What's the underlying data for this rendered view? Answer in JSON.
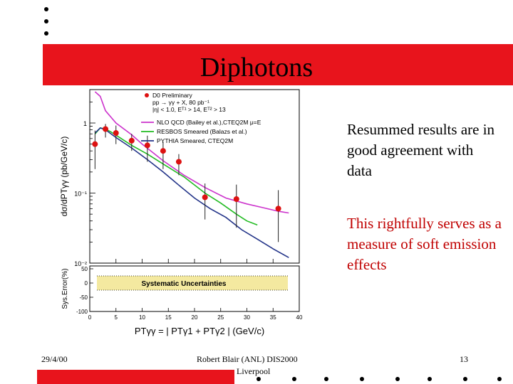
{
  "slide": {
    "title": "Diphotons",
    "bullets": [
      {
        "text": "Resummed results are in good agreement with data",
        "color": "#000000"
      },
      {
        "text": "This rightfully serves as a measure of soft emission effects",
        "color": "#c00000"
      }
    ],
    "footer": {
      "date": "29/4/00",
      "author": "Robert Blair (ANL) DIS2000",
      "location": "Liverpool",
      "page": "13"
    },
    "accent_color": "#e8141c"
  },
  "chart_data": [
    {
      "type": "scatter",
      "ylabel": "dσ/dPTγγ (pb/GeV/c)",
      "y_ticks": [
        "1",
        "10⁻¹",
        "10⁻²"
      ],
      "log_y": true,
      "xlim": [
        0,
        40
      ],
      "ylim": [
        0.01,
        3
      ],
      "legend": {
        "placement": "top-right",
        "header": [
          "D0 Preliminary",
          "pp → γγ + X, 80 pb⁻¹",
          "|η| < 1.0, Eᵀ¹ > 14, Eᵀ² > 13"
        ],
        "entries": [
          {
            "label": "D0 Preliminary",
            "color": "#dd1111",
            "kind": "points"
          },
          {
            "label": "NLO QCD (Bailey et al.),CTEQ2M μ=E",
            "color": "#cc33cc",
            "kind": "line"
          },
          {
            "label": "RESBOS Smeared (Balazs et al.)",
            "color": "#22bb22",
            "kind": "line"
          },
          {
            "label": "PYTHIA Smeared, CTEQ2M",
            "color": "#223388",
            "kind": "line"
          }
        ]
      },
      "series": [
        {
          "name": "D0 Preliminary",
          "kind": "points",
          "color": "#dd1111",
          "x": [
            1,
            3,
            5,
            8,
            11,
            14,
            17,
            22,
            28,
            36
          ],
          "y": [
            0.5,
            0.82,
            0.72,
            0.56,
            0.48,
            0.4,
            0.28,
            0.087,
            0.082,
            0.06
          ],
          "err_lo": [
            0.28,
            0.2,
            0.22,
            0.16,
            0.2,
            0.18,
            0.1,
            0.045,
            0.05,
            0.04
          ],
          "err_hi": [
            0.28,
            0.15,
            0.2,
            0.14,
            0.18,
            0.14,
            0.08,
            0.05,
            0.05,
            0.05
          ]
        },
        {
          "name": "NLO QCD (Bailey et al.),CTEQ2M μ=E",
          "kind": "line",
          "color": "#cc33cc",
          "x": [
            1,
            2,
            3,
            5,
            8,
            10,
            14,
            18,
            22,
            26,
            30,
            33,
            36,
            38
          ],
          "y": [
            2.8,
            2.4,
            1.5,
            1.0,
            0.68,
            0.5,
            0.29,
            0.18,
            0.12,
            0.085,
            0.07,
            0.062,
            0.055,
            0.052
          ]
        },
        {
          "name": "RESBOS Smeared (Balazs et al.)",
          "kind": "line",
          "color": "#22bb22",
          "x": [
            1,
            2,
            3,
            4,
            6,
            8,
            11,
            14,
            18,
            22,
            25,
            28,
            30,
            32
          ],
          "y": [
            0.7,
            0.85,
            0.82,
            0.75,
            0.6,
            0.48,
            0.36,
            0.26,
            0.17,
            0.1,
            0.072,
            0.05,
            0.04,
            0.035
          ]
        },
        {
          "name": "PYTHIA Smeared, CTEQ2M",
          "kind": "line",
          "color": "#223388",
          "x": [
            1,
            2,
            3,
            5,
            8,
            11,
            14,
            17,
            20,
            23,
            26,
            29,
            32,
            35,
            38
          ],
          "y": [
            0.72,
            0.85,
            0.8,
            0.62,
            0.44,
            0.3,
            0.2,
            0.13,
            0.085,
            0.06,
            0.045,
            0.03,
            0.022,
            0.016,
            0.012
          ]
        }
      ]
    },
    {
      "type": "area",
      "ylabel": "Sys.Error(%)",
      "xlabel": "PTγγ = | PTγ1 + PTγ2 | (GeV/c)",
      "x_ticks": [
        0,
        5,
        10,
        15,
        20,
        25,
        30,
        35,
        40
      ],
      "y_ticks": [
        50,
        0,
        -50,
        -100
      ],
      "xlim": [
        0,
        40
      ],
      "ylim": [
        -100,
        60
      ],
      "band": {
        "label": "Systematic Uncertainties",
        "low": -25,
        "high": 25,
        "color": "#f4e9a0"
      }
    }
  ]
}
